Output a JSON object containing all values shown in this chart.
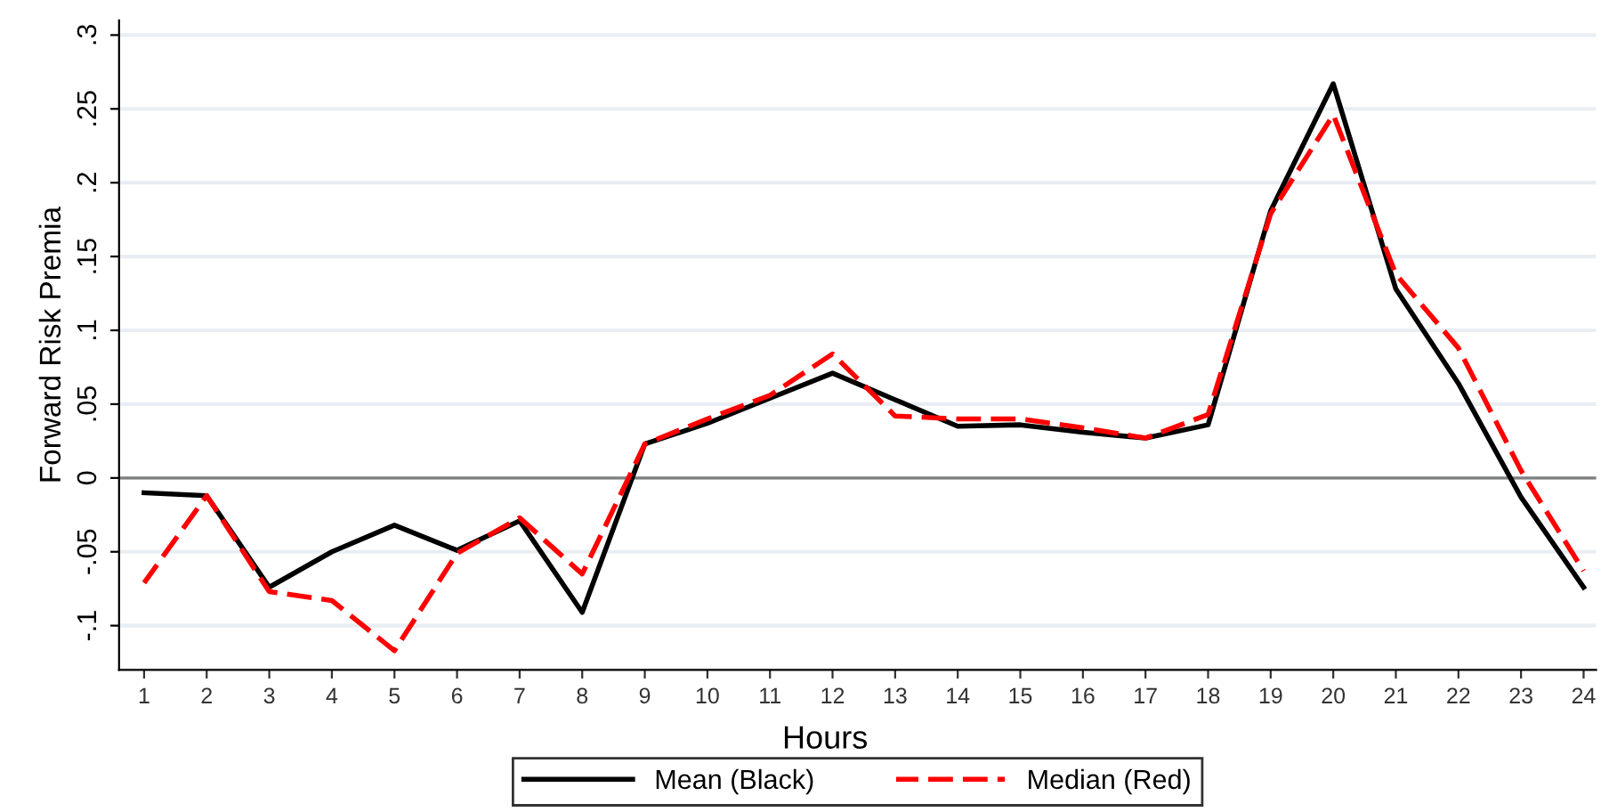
{
  "chart_data": {
    "type": "line",
    "xlabel": "Hours",
    "ylabel": "Forward Risk Premia",
    "x": [
      1,
      2,
      3,
      4,
      5,
      6,
      7,
      8,
      9,
      10,
      11,
      12,
      13,
      14,
      15,
      16,
      17,
      18,
      19,
      20,
      21,
      22,
      23,
      24
    ],
    "series": [
      {
        "name": "Mean (Black)",
        "color": "#000000",
        "line_style": "solid",
        "values": [
          -0.01,
          -0.012,
          -0.074,
          -0.05,
          -0.032,
          -0.049,
          -0.029,
          -0.091,
          0.023,
          0.037,
          0.054,
          0.071,
          0.053,
          0.035,
          0.036,
          0.031,
          0.027,
          0.036,
          0.181,
          0.267,
          0.128,
          0.064,
          -0.013,
          -0.074
        ]
      },
      {
        "name": "Median (Red)",
        "color": "#ff0000",
        "line_style": "dashed",
        "values": [
          -0.071,
          -0.012,
          -0.077,
          -0.083,
          -0.117,
          -0.051,
          -0.027,
          -0.065,
          0.023,
          0.04,
          0.056,
          0.084,
          0.042,
          0.04,
          0.04,
          0.034,
          0.027,
          0.043,
          0.179,
          0.246,
          0.138,
          0.088,
          0.005,
          -0.063
        ]
      }
    ],
    "xlim": [
      0.6,
      24.2
    ],
    "xticks": [
      1,
      2,
      3,
      4,
      5,
      6,
      7,
      8,
      9,
      10,
      11,
      12,
      13,
      14,
      15,
      16,
      17,
      18,
      19,
      20,
      21,
      22,
      23,
      24
    ],
    "ylim": [
      -0.13,
      0.31
    ],
    "yticks": [
      {
        "value": -0.1,
        "label": "-.1"
      },
      {
        "value": -0.05,
        "label": "-.05"
      },
      {
        "value": 0,
        "label": "0"
      },
      {
        "value": 0.05,
        "label": ".05"
      },
      {
        "value": 0.1,
        "label": ".1"
      },
      {
        "value": 0.15,
        "label": ".15"
      },
      {
        "value": 0.2,
        "label": ".2"
      },
      {
        "value": 0.25,
        "label": ".25"
      },
      {
        "value": 0.3,
        "label": ".3"
      }
    ],
    "ref_lines": [
      {
        "axis": "y",
        "value": 0,
        "color": "#808080"
      }
    ],
    "grid": "y",
    "legend": "bottom",
    "marker": "none"
  }
}
